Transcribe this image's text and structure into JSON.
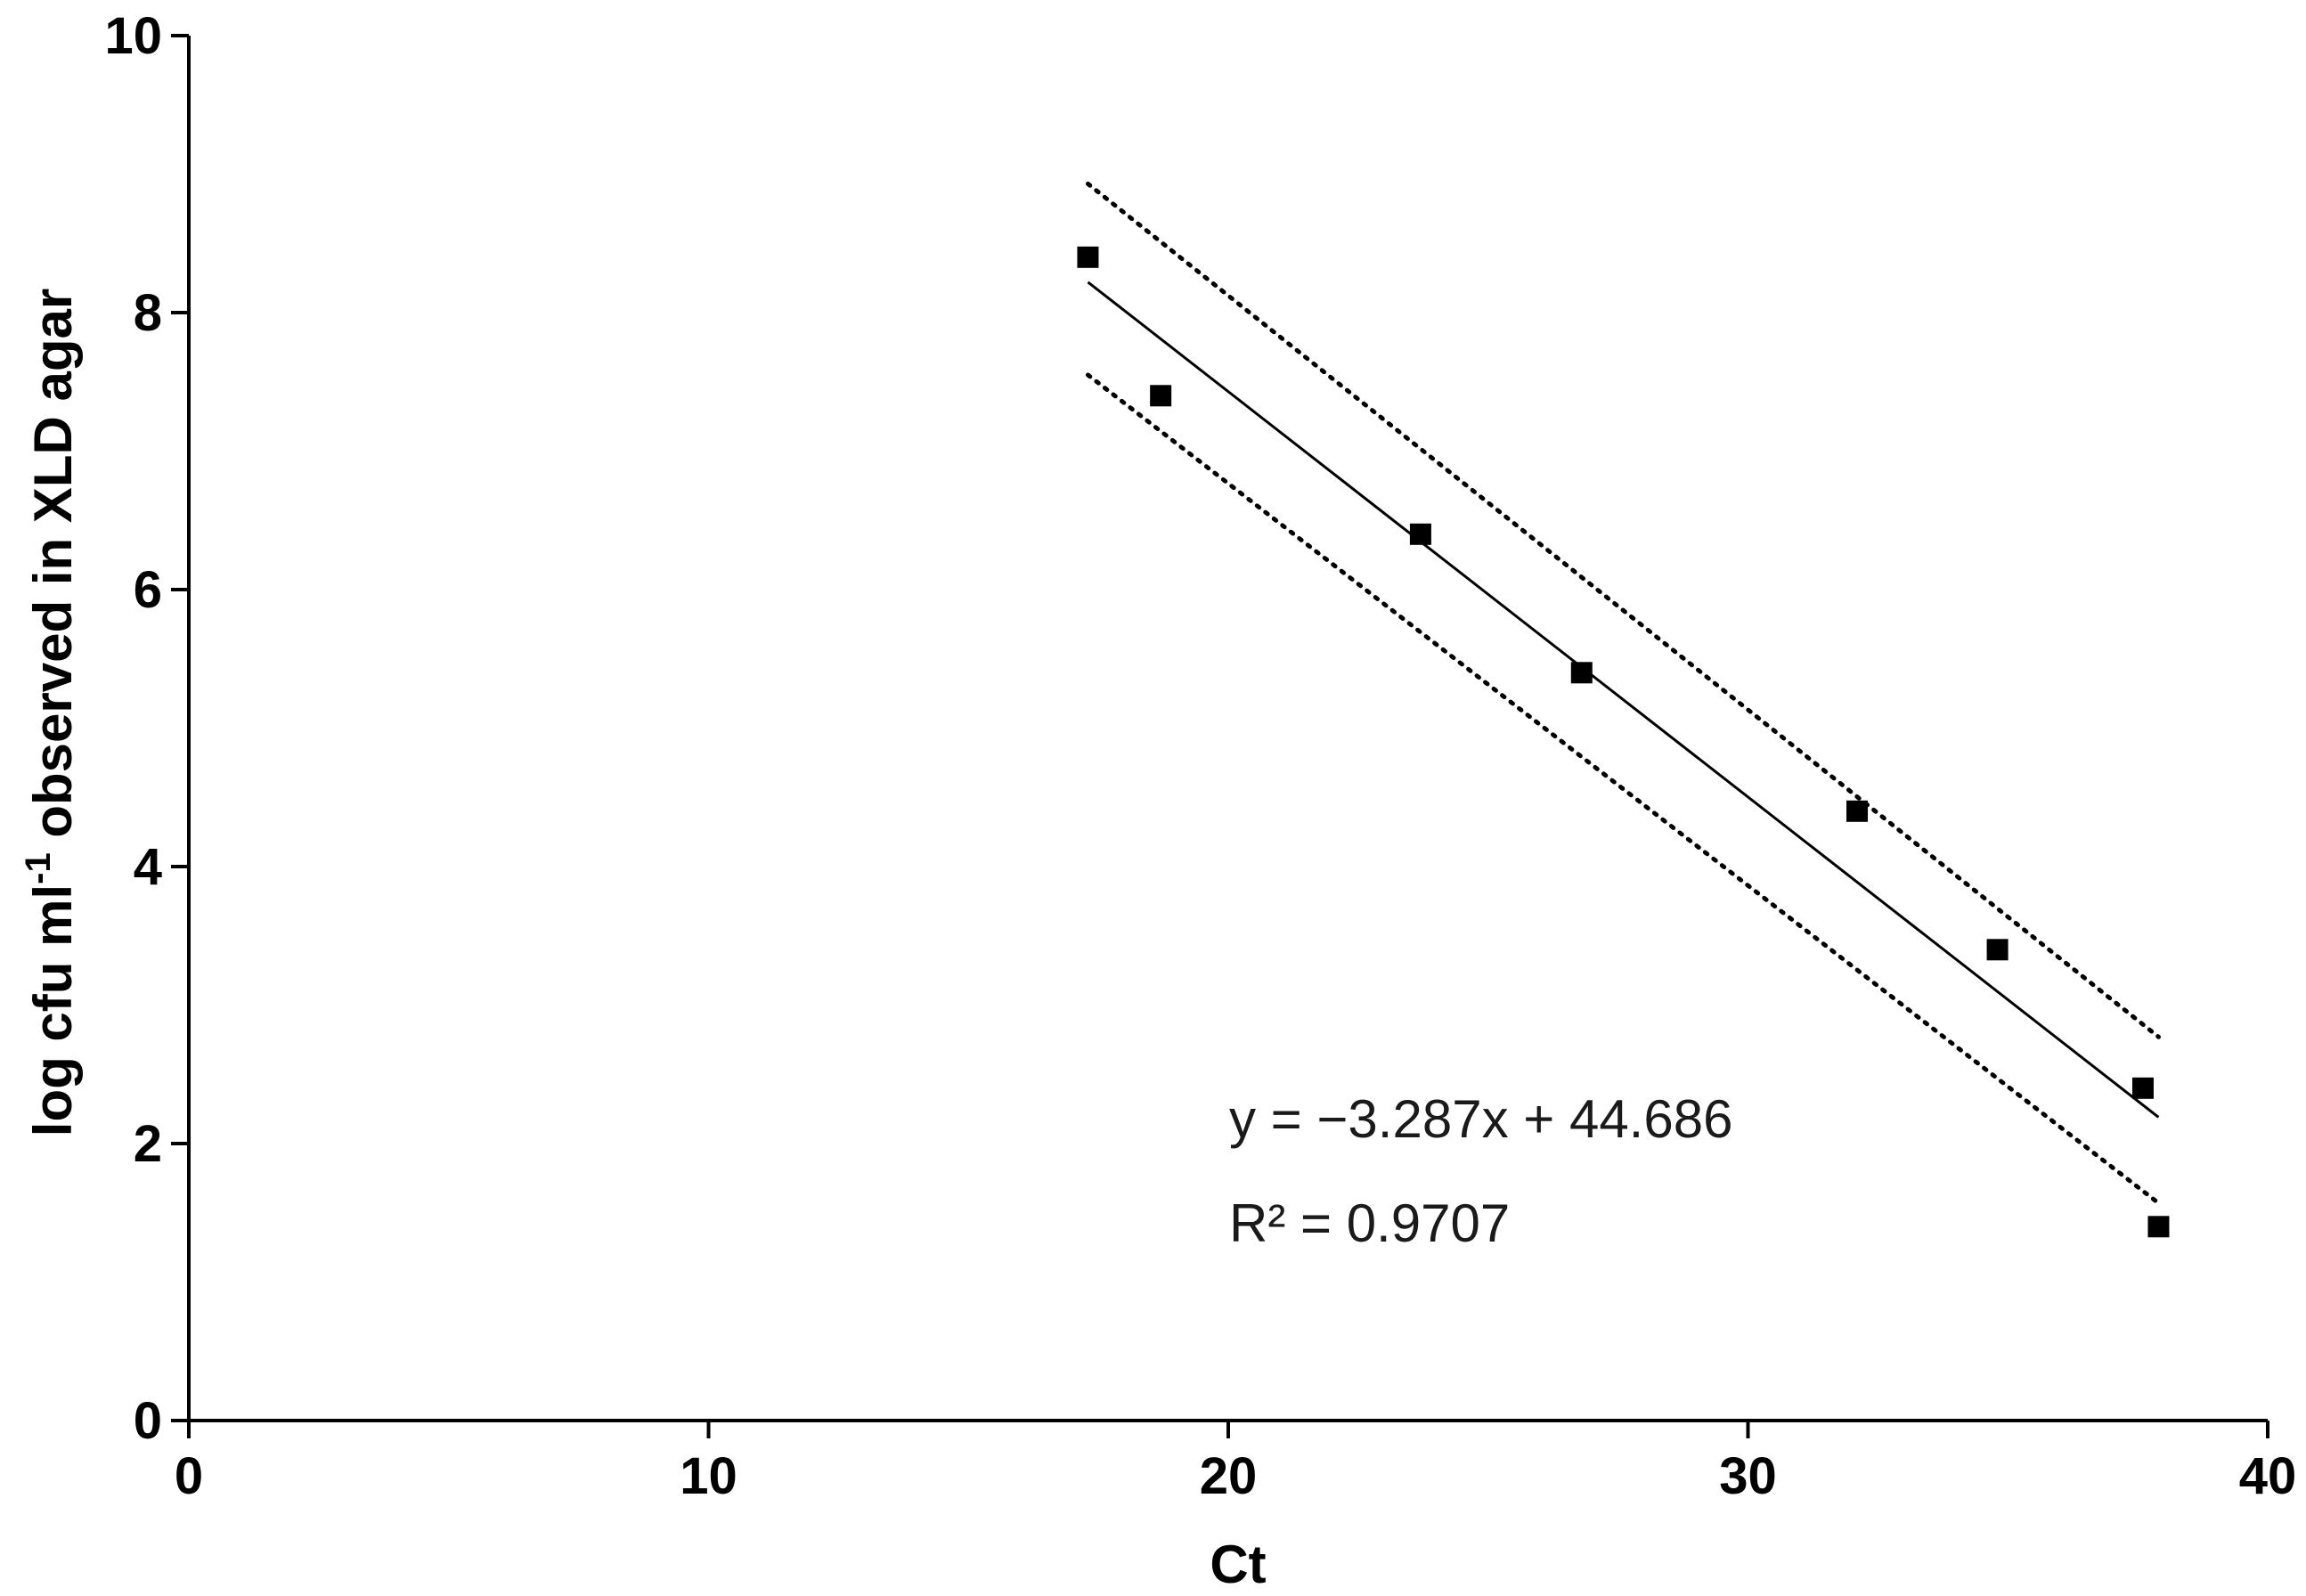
{
  "chart_data": {
    "type": "scatter",
    "xlabel": "Ct",
    "ylabel": "log cfu ml",
    "ylabel_sup": "-1",
    "ylabel_rest": " observed in XLD agar",
    "xlim": [
      0,
      40
    ],
    "ylim": [
      0,
      10
    ],
    "xticks": [
      "0",
      "10",
      "20",
      "30",
      "40"
    ],
    "yticks": [
      "0",
      "2",
      "4",
      "6",
      "8",
      "10"
    ],
    "grid": false,
    "points": [
      {
        "x": 17.3,
        "y": 8.4
      },
      {
        "x": 18.7,
        "y": 7.4
      },
      {
        "x": 23.7,
        "y": 6.4
      },
      {
        "x": 26.8,
        "y": 5.4
      },
      {
        "x": 32.1,
        "y": 4.4
      },
      {
        "x": 34.8,
        "y": 3.4
      },
      {
        "x": 37.6,
        "y": 2.4
      },
      {
        "x": 37.9,
        "y": 1.4
      }
    ],
    "fit_line": {
      "x": [
        17.3,
        37.9
      ],
      "y": [
        8.22,
        2.19
      ]
    },
    "upper_band": {
      "x": [
        17.3,
        37.9
      ],
      "y": [
        8.93,
        2.77
      ]
    },
    "lower_band": {
      "x": [
        17.3,
        37.9
      ],
      "y": [
        7.55,
        1.57
      ]
    },
    "annotations": {
      "equation": "y = −3.287x + 44.686",
      "r_squared": "R² = 0.9707"
    }
  }
}
